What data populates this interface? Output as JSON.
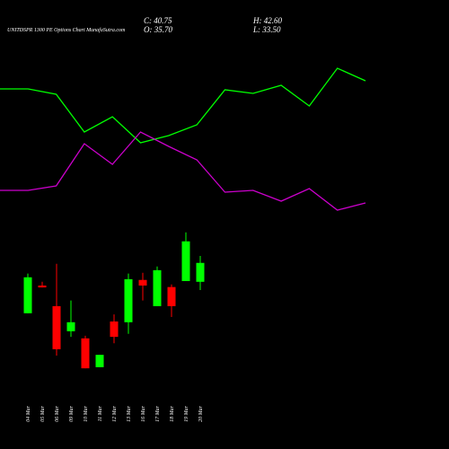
{
  "chart_data": [
    {
      "type": "candlestick",
      "title": "UNITDSPR 1300 PE Options Chart MunafaSutra.com",
      "close_text": "C: 40.75",
      "open_text": "O: 35.70",
      "high_text": "H: 42.60",
      "low_text": "L: 33.50",
      "categories": [
        "04 Mar",
        "05 Mar",
        "06 Mar",
        "09 Mar",
        "10 Mar",
        "11 Mar",
        "12 Mar",
        "13 Mar",
        "16 Mar",
        "17 Mar",
        "18 Mar",
        "19 Mar",
        "20 Mar"
      ],
      "open": [
        27.3,
        34.7,
        29.2,
        22.5,
        20.6,
        12.9,
        25.1,
        24.9,
        36.2,
        29.2,
        34.3,
        35.9,
        35.7
      ],
      "high": [
        37.9,
        35.7,
        40.5,
        30.7,
        21.3,
        16.2,
        27.0,
        37.9,
        38.1,
        39.8,
        35.0,
        48.9,
        42.6
      ],
      "low": [
        27.3,
        34.2,
        16.0,
        21.0,
        12.6,
        12.9,
        19.3,
        21.8,
        30.7,
        29.2,
        26.3,
        35.9,
        33.5
      ],
      "close": [
        36.9,
        34.2,
        17.7,
        24.9,
        12.6,
        16.2,
        21.0,
        36.4,
        34.7,
        38.8,
        29.2,
        46.5,
        40.75
      ],
      "up_color": "#00ff00",
      "down_color": "#ff0000",
      "ylim": [
        10,
        51
      ]
    },
    {
      "type": "line",
      "series": [
        {
          "color": "#00ff00",
          "values": [
            151,
            151,
            145,
            103,
            120,
            91,
            99,
            111,
            150,
            146,
            155,
            132,
            174,
            160
          ]
        },
        {
          "color": "#cc00cc",
          "values": [
            38,
            38,
            43,
            90,
            67,
            103,
            87,
            72,
            36,
            38,
            26,
            40,
            16,
            24
          ]
        }
      ],
      "ylim": [
        0,
        200
      ]
    }
  ]
}
